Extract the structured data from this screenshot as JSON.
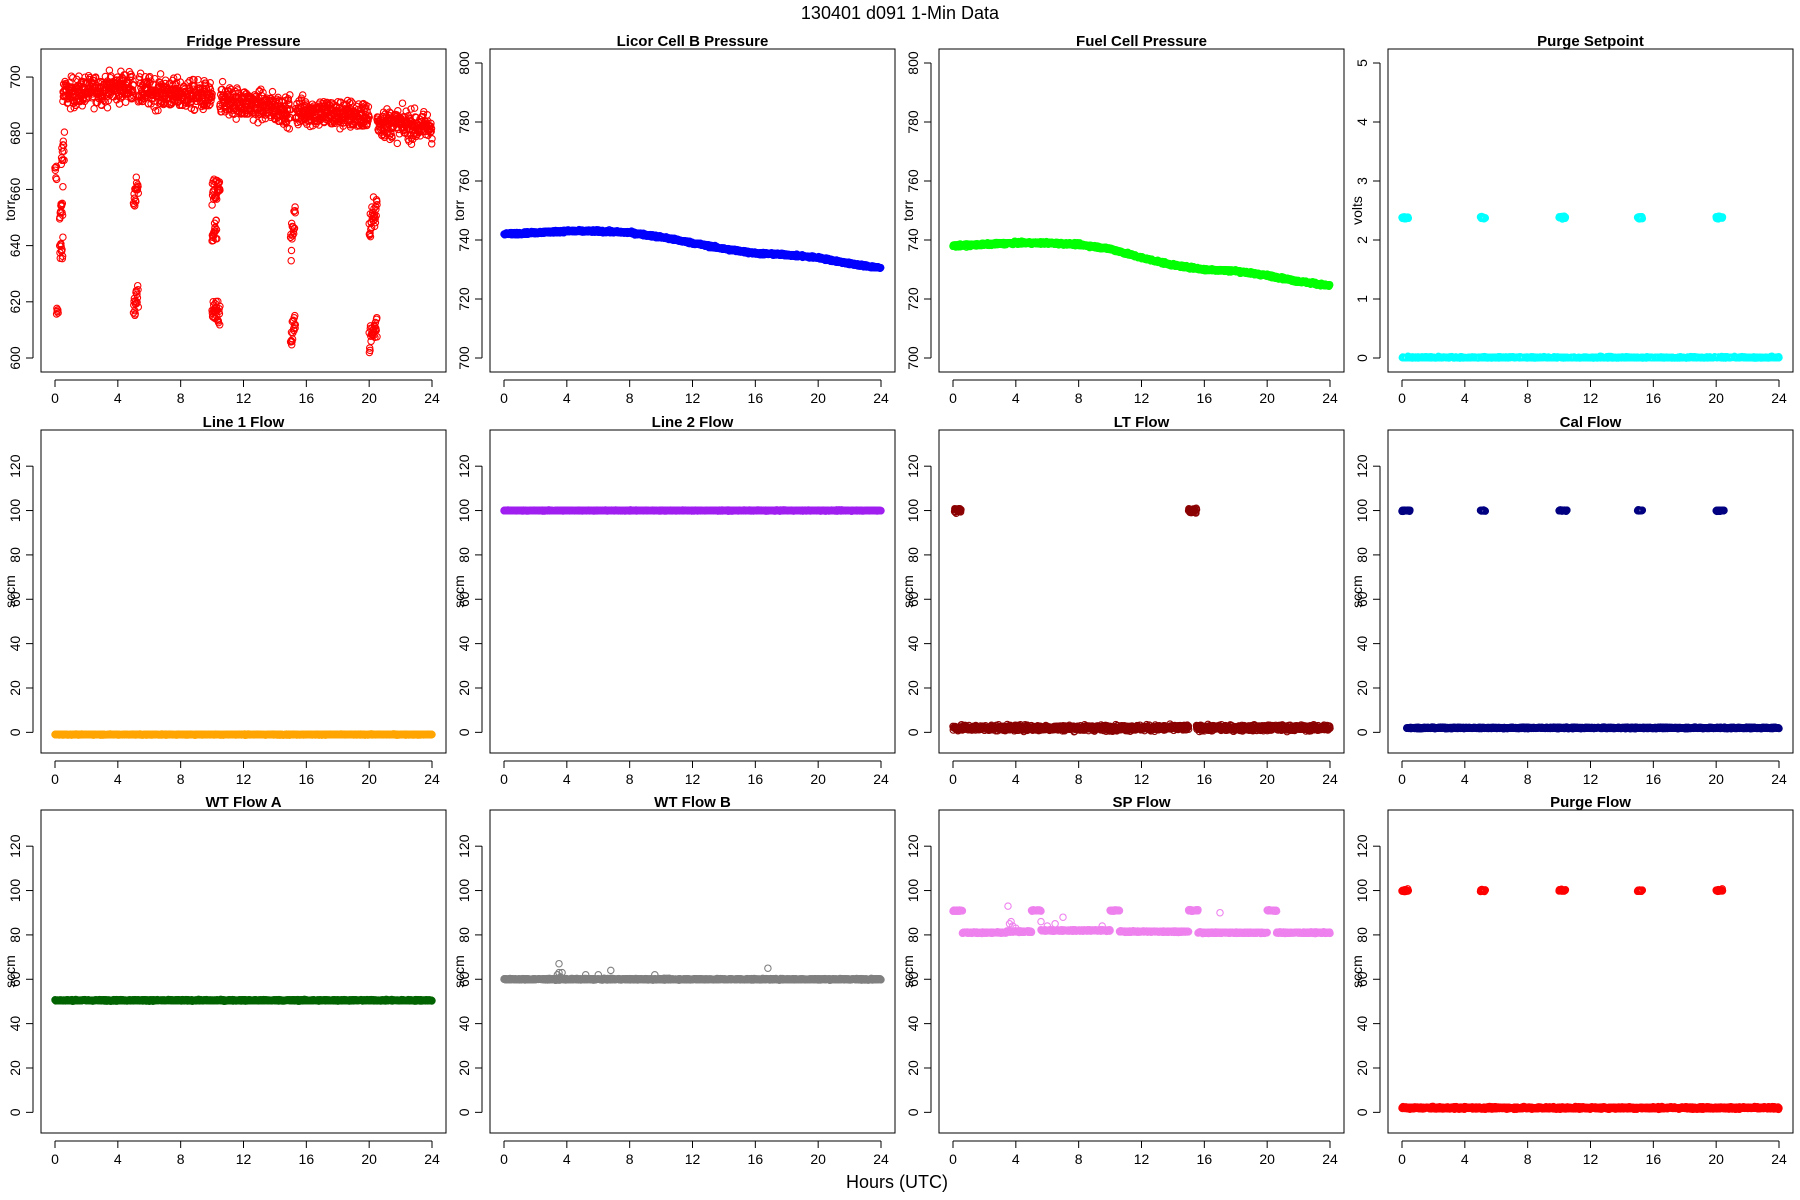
{
  "figure": {
    "title": "130401    d091    1-Min Data",
    "xlabel": "Hours (UTC)"
  },
  "chart_data": [
    {
      "type": "scatter",
      "title": "Fridge Pressure",
      "ylabel": "torr",
      "color": "#ff0000",
      "marker": "open-circle",
      "xlim": [
        0,
        24
      ],
      "ylim": [
        600,
        705
      ],
      "xticks": [
        0,
        4,
        8,
        12,
        16,
        20,
        24
      ],
      "yticks": [
        600,
        620,
        640,
        660,
        680,
        700
      ],
      "noise": 5,
      "segments": [
        {
          "x": [
            0.0,
            0.1
          ],
          "y": [
            665,
            665
          ]
        },
        {
          "x": [
            0.3,
            0.5
          ],
          "y": [
            638,
            640
          ]
        },
        {
          "x": [
            0.3,
            0.5
          ],
          "y": [
            650,
            655
          ]
        },
        {
          "x": [
            0.4,
            0.6
          ],
          "y": [
            670,
            678
          ]
        },
        {
          "x": [
            0.1,
            0.2
          ],
          "y": [
            616,
            617
          ]
        },
        {
          "x": [
            0.5,
            5.0
          ],
          "y": [
            694,
            697
          ]
        },
        {
          "x": [
            5.3,
            10.0
          ],
          "y": [
            695,
            693
          ]
        },
        {
          "x": [
            5.0,
            5.3
          ],
          "y": [
            655,
            660
          ]
        },
        {
          "x": [
            5.0,
            5.3
          ],
          "y": [
            618,
            622
          ]
        },
        {
          "x": [
            10.0,
            10.5
          ],
          "y": [
            658,
            660
          ]
        },
        {
          "x": [
            10.0,
            10.3
          ],
          "y": [
            644,
            645
          ]
        },
        {
          "x": [
            10.0,
            10.5
          ],
          "y": [
            615,
            617
          ]
        },
        {
          "x": [
            10.5,
            15.0
          ],
          "y": [
            692,
            688
          ]
        },
        {
          "x": [
            15.0,
            15.3
          ],
          "y": [
            640,
            650
          ]
        },
        {
          "x": [
            15.0,
            15.3
          ],
          "y": [
            608,
            612
          ]
        },
        {
          "x": [
            15.3,
            20.0
          ],
          "y": [
            688,
            686
          ]
        },
        {
          "x": [
            20.0,
            20.5
          ],
          "y": [
            645,
            655
          ]
        },
        {
          "x": [
            20.0,
            20.5
          ],
          "y": [
            606,
            612
          ]
        },
        {
          "x": [
            20.5,
            24.0
          ],
          "y": [
            684,
            682
          ]
        }
      ]
    },
    {
      "type": "scatter",
      "title": "Licor Cell B Pressure",
      "ylabel": "torr",
      "color": "#0000ff",
      "marker": "open-circle",
      "xlim": [
        0,
        24
      ],
      "ylim": [
        700,
        800
      ],
      "xticks": [
        0,
        4,
        8,
        12,
        16,
        20,
        24
      ],
      "yticks": [
        700,
        720,
        740,
        760,
        780,
        800
      ],
      "noise": 0.4,
      "series": [
        {
          "x": [
            0,
            2,
            4,
            6,
            8,
            10,
            12,
            14,
            16,
            18,
            20,
            22,
            24
          ],
          "y": [
            742,
            742.5,
            743,
            743,
            742.5,
            741,
            739,
            737,
            735.5,
            735,
            734,
            732,
            730.5
          ]
        }
      ]
    },
    {
      "type": "scatter",
      "title": "Fuel Cell Pressure",
      "ylabel": "torr",
      "color": "#00ff00",
      "marker": "open-circle",
      "xlim": [
        0,
        24
      ],
      "ylim": [
        700,
        800
      ],
      "xticks": [
        0,
        4,
        8,
        12,
        16,
        20,
        24
      ],
      "yticks": [
        700,
        720,
        740,
        760,
        780,
        800
      ],
      "noise": 0.4,
      "series": [
        {
          "x": [
            0,
            2,
            4,
            6,
            8,
            10,
            12,
            14,
            16,
            18,
            20,
            22,
            24
          ],
          "y": [
            738,
            738.5,
            739,
            739,
            738.5,
            737,
            734,
            731.5,
            730,
            729.5,
            728,
            726,
            724.5
          ]
        }
      ]
    },
    {
      "type": "scatter",
      "title": "Purge Setpoint",
      "ylabel": "volts",
      "color": "#00ffff",
      "marker": "open-circle",
      "xlim": [
        0,
        24
      ],
      "ylim": [
        0,
        5
      ],
      "xticks": [
        0,
        4,
        8,
        12,
        16,
        20,
        24
      ],
      "yticks": [
        0,
        1,
        2,
        3,
        4,
        5
      ],
      "noise": 0.02,
      "segments": [
        {
          "x": [
            0.0,
            24.0
          ],
          "y": [
            0,
            0
          ]
        },
        {
          "x": [
            0.0,
            0.4
          ],
          "y": [
            2.38,
            2.38
          ]
        },
        {
          "x": [
            5.0,
            5.3
          ],
          "y": [
            2.38,
            2.38
          ]
        },
        {
          "x": [
            10.0,
            10.4
          ],
          "y": [
            2.38,
            2.38
          ]
        },
        {
          "x": [
            15.0,
            15.3
          ],
          "y": [
            2.38,
            2.38
          ]
        },
        {
          "x": [
            20.0,
            20.4
          ],
          "y": [
            2.38,
            2.38
          ]
        }
      ]
    },
    {
      "type": "scatter",
      "title": "Line 1 Flow",
      "ylabel": "sccm",
      "color": "#ffa500",
      "marker": "open-circle",
      "xlim": [
        0,
        24
      ],
      "ylim": [
        -3,
        130
      ],
      "xticks": [
        0,
        4,
        8,
        12,
        16,
        20,
        24
      ],
      "yticks": [
        0,
        20,
        40,
        60,
        80,
        100,
        120
      ],
      "noise": 0.2,
      "segments": [
        {
          "x": [
            0.0,
            24.0
          ],
          "y": [
            -1,
            -1
          ]
        }
      ]
    },
    {
      "type": "scatter",
      "title": "Line 2 Flow",
      "ylabel": "sccm",
      "color": "#a020f0",
      "marker": "open-circle",
      "xlim": [
        0,
        24
      ],
      "ylim": [
        -3,
        130
      ],
      "xticks": [
        0,
        4,
        8,
        12,
        16,
        20,
        24
      ],
      "yticks": [
        0,
        20,
        40,
        60,
        80,
        100,
        120
      ],
      "noise": 0.2,
      "segments": [
        {
          "x": [
            0.0,
            24.0
          ],
          "y": [
            100,
            100
          ]
        }
      ]
    },
    {
      "type": "scatter",
      "title": "LT Flow",
      "ylabel": "sccm",
      "color": "#8b0000",
      "marker": "open-circle",
      "xlim": [
        0,
        24
      ],
      "ylim": [
        -3,
        130
      ],
      "xticks": [
        0,
        4,
        8,
        12,
        16,
        20,
        24
      ],
      "yticks": [
        0,
        20,
        40,
        60,
        80,
        100,
        120
      ],
      "noise": 1.2,
      "segments": [
        {
          "x": [
            0.0,
            15.0
          ],
          "y": [
            2,
            2
          ]
        },
        {
          "x": [
            15.5,
            24.0
          ],
          "y": [
            2,
            2
          ]
        },
        {
          "x": [
            0.1,
            0.5
          ],
          "y": [
            100,
            100
          ]
        },
        {
          "x": [
            15.0,
            15.5
          ],
          "y": [
            100,
            100
          ]
        }
      ]
    },
    {
      "type": "scatter",
      "title": "Cal Flow",
      "ylabel": "sccm",
      "color": "#000080",
      "marker": "open-circle",
      "xlim": [
        0,
        24
      ],
      "ylim": [
        -3,
        130
      ],
      "xticks": [
        0,
        4,
        8,
        12,
        16,
        20,
        24
      ],
      "yticks": [
        0,
        20,
        40,
        60,
        80,
        100,
        120
      ],
      "noise": 0.3,
      "segments": [
        {
          "x": [
            0.3,
            24.0
          ],
          "y": [
            2,
            2
          ]
        },
        {
          "x": [
            0.0,
            0.5
          ],
          "y": [
            100,
            100
          ]
        },
        {
          "x": [
            5.0,
            5.3
          ],
          "y": [
            100,
            100
          ]
        },
        {
          "x": [
            10.0,
            10.5
          ],
          "y": [
            100,
            100
          ]
        },
        {
          "x": [
            15.0,
            15.3
          ],
          "y": [
            100,
            100
          ]
        },
        {
          "x": [
            20.0,
            20.5
          ],
          "y": [
            100,
            100
          ]
        }
      ]
    },
    {
      "type": "scatter",
      "title": "WT Flow A",
      "ylabel": "sccm",
      "color": "#006400",
      "marker": "open-circle",
      "xlim": [
        0,
        24
      ],
      "ylim": [
        -3,
        130
      ],
      "xticks": [
        0,
        4,
        8,
        12,
        16,
        20,
        24
      ],
      "yticks": [
        0,
        20,
        40,
        60,
        80,
        100,
        120
      ],
      "noise": 0.3,
      "segments": [
        {
          "x": [
            0.0,
            24.0
          ],
          "y": [
            50.5,
            50.5
          ]
        }
      ]
    },
    {
      "type": "scatter",
      "title": "WT Flow B",
      "ylabel": "sccm",
      "color": "#808080",
      "marker": "open-circle",
      "xlim": [
        0,
        24
      ],
      "ylim": [
        -3,
        130
      ],
      "xticks": [
        0,
        4,
        8,
        12,
        16,
        20,
        24
      ],
      "yticks": [
        0,
        20,
        40,
        60,
        80,
        100,
        120
      ],
      "noise": 0.3,
      "segments": [
        {
          "x": [
            0.0,
            24.0
          ],
          "y": [
            60,
            60
          ]
        }
      ],
      "points": {
        "x": [
          3.4,
          3.5,
          3.5,
          3.6,
          3.7,
          5.2,
          6.0,
          6.8,
          9.6,
          16.8
        ],
        "y": [
          62,
          67,
          63,
          61,
          63,
          62,
          62,
          64,
          62,
          65
        ]
      }
    },
    {
      "type": "scatter",
      "title": "SP Flow",
      "ylabel": "sccm",
      "color": "#ee82ee",
      "marker": "open-circle",
      "xlim": [
        0,
        24
      ],
      "ylim": [
        -3,
        130
      ],
      "xticks": [
        0,
        4,
        8,
        12,
        16,
        20,
        24
      ],
      "yticks": [
        0,
        20,
        40,
        60,
        80,
        100,
        120
      ],
      "noise": 0.3,
      "segments": [
        {
          "x": [
            0.0,
            0.6
          ],
          "y": [
            91,
            91
          ]
        },
        {
          "x": [
            0.6,
            3.4
          ],
          "y": [
            81,
            81
          ]
        },
        {
          "x": [
            3.4,
            5.0
          ],
          "y": [
            81.5,
            81.5
          ]
        },
        {
          "x": [
            5.0,
            5.6
          ],
          "y": [
            91,
            91
          ]
        },
        {
          "x": [
            5.6,
            10.0
          ],
          "y": [
            82,
            82
          ]
        },
        {
          "x": [
            10.0,
            10.6
          ],
          "y": [
            91,
            91
          ]
        },
        {
          "x": [
            10.6,
            15.0
          ],
          "y": [
            81.5,
            81.5
          ]
        },
        {
          "x": [
            15.0,
            15.6
          ],
          "y": [
            91,
            91
          ]
        },
        {
          "x": [
            15.6,
            20.0
          ],
          "y": [
            81,
            81
          ]
        },
        {
          "x": [
            20.0,
            20.6
          ],
          "y": [
            91,
            91
          ]
        },
        {
          "x": [
            20.6,
            24.0
          ],
          "y": [
            81,
            81
          ]
        }
      ],
      "points": {
        "x": [
          3.5,
          3.6,
          3.7,
          3.8,
          3.6,
          4.0,
          5.6,
          6.0,
          6.5,
          7.0,
          9.5,
          17.0
        ],
        "y": [
          93,
          85,
          86,
          84,
          82,
          83,
          86,
          84,
          85,
          88,
          84,
          90
        ]
      }
    },
    {
      "type": "scatter",
      "title": "Purge Flow",
      "ylabel": "sccm",
      "color": "#ff0000",
      "marker": "open-circle",
      "xlim": [
        0,
        24
      ],
      "ylim": [
        -3,
        130
      ],
      "xticks": [
        0,
        4,
        8,
        12,
        16,
        20,
        24
      ],
      "yticks": [
        0,
        20,
        40,
        60,
        80,
        100,
        120
      ],
      "noise": 0.5,
      "segments": [
        {
          "x": [
            0.0,
            24.0
          ],
          "y": [
            2,
            2
          ]
        },
        {
          "x": [
            0.0,
            0.4
          ],
          "y": [
            100,
            100
          ]
        },
        {
          "x": [
            5.0,
            5.3
          ],
          "y": [
            100,
            100
          ]
        },
        {
          "x": [
            10.0,
            10.4
          ],
          "y": [
            100,
            100
          ]
        },
        {
          "x": [
            15.0,
            15.3
          ],
          "y": [
            100,
            100
          ]
        },
        {
          "x": [
            20.0,
            20.4
          ],
          "y": [
            100,
            100
          ]
        }
      ]
    }
  ]
}
